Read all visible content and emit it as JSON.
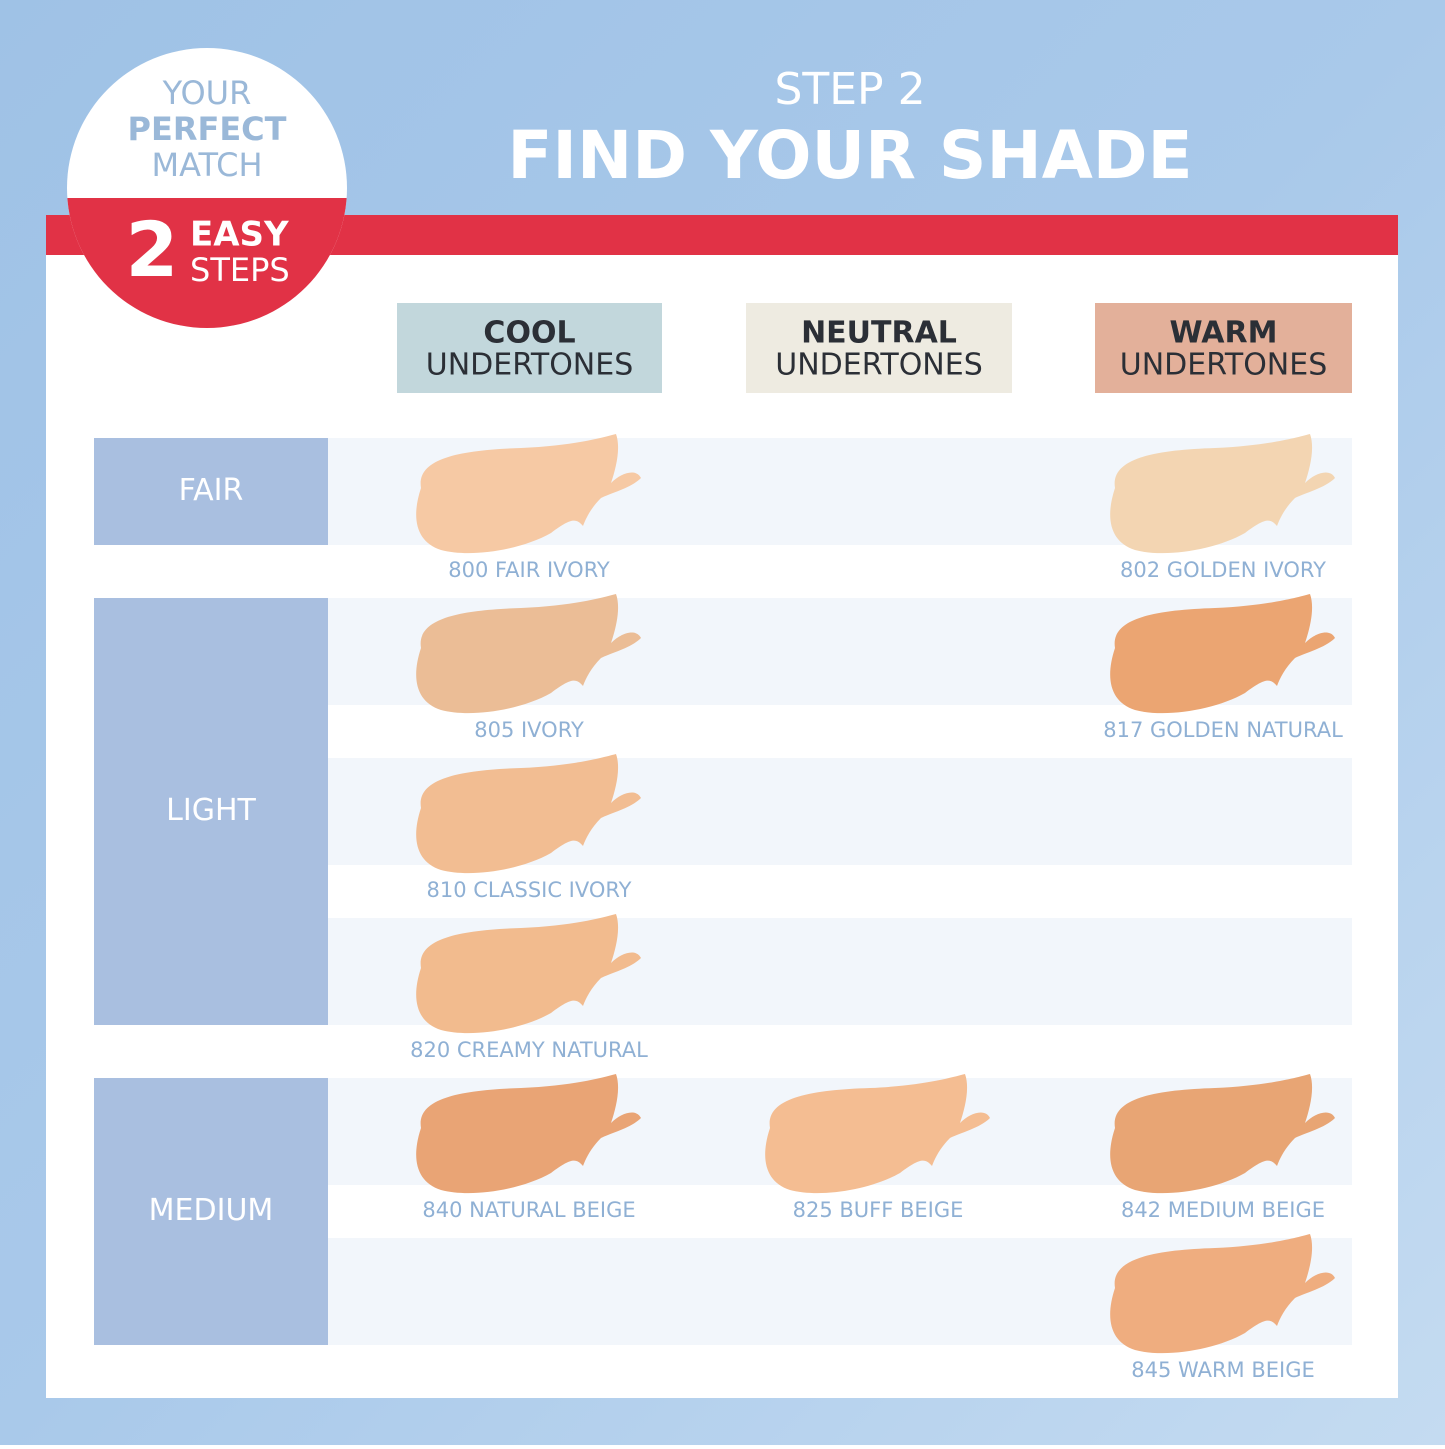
{
  "badge": {
    "line1": "YOUR",
    "line2": "PERFECT",
    "line3": "MATCH",
    "number": "2",
    "line4": "EASY",
    "line5": "STEPS"
  },
  "header": {
    "step": "STEP 2",
    "title": "FIND YOUR SHADE"
  },
  "columns": [
    {
      "bold": "COOL",
      "rest": "UNDERTONES",
      "color": "#c2d7dc"
    },
    {
      "bold": "NEUTRAL",
      "rest": "UNDERTONES",
      "color": "#eeebe1"
    },
    {
      "bold": "WARM",
      "rest": "UNDERTONES",
      "color": "#e3b09a"
    }
  ],
  "groups": [
    {
      "label": "FAIR",
      "rows": [
        [
          {
            "name": "800 FAIR IVORY",
            "color": "#f6c9a4"
          },
          null,
          {
            "name": "802 GOLDEN IVORY",
            "color": "#f3d5b2"
          }
        ]
      ]
    },
    {
      "label": "LIGHT",
      "rows": [
        [
          {
            "name": "805 IVORY",
            "color": "#ebbd96"
          },
          null,
          {
            "name": "817 GOLDEN NATURAL",
            "color": "#eba572"
          }
        ],
        [
          {
            "name": "810 CLASSIC IVORY",
            "color": "#f2bd92"
          },
          null,
          null
        ],
        [
          {
            "name": "820 CREAMY NATURAL",
            "color": "#f2bb8e"
          },
          null,
          null
        ]
      ]
    },
    {
      "label": "MEDIUM",
      "rows": [
        [
          {
            "name": "840 NATURAL BEIGE",
            "color": "#e9a475"
          },
          {
            "name": "825 BUFF BEIGE",
            "color": "#f4bd92"
          },
          {
            "name": "842 MEDIUM BEIGE",
            "color": "#e8a574"
          }
        ],
        [
          null,
          null,
          {
            "name": "845 WARM BEIGE",
            "color": "#efad7f"
          }
        ]
      ]
    }
  ]
}
